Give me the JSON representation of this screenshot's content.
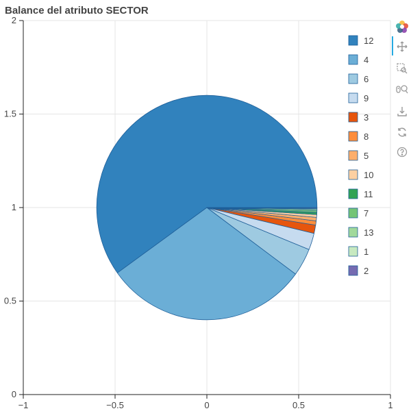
{
  "chart_data": {
    "type": "pie",
    "title": "Balance del atributo SECTOR",
    "xlim": [
      -1,
      1
    ],
    "ylim": [
      0,
      2
    ],
    "x_ticks": [
      "−1",
      "−0.5",
      "0",
      "0.5",
      "1"
    ],
    "y_ticks": [
      "0",
      "0.5",
      "1",
      "1.5",
      "2"
    ],
    "grid": true,
    "legend_position": "top-right",
    "slices": [
      {
        "label": "12",
        "value": 0.599,
        "color": "#3182bd"
      },
      {
        "label": "4",
        "value": 0.3,
        "color": "#6baed6"
      },
      {
        "label": "6",
        "value": 0.04,
        "color": "#9ecae1"
      },
      {
        "label": "9",
        "value": 0.024,
        "color": "#c6dbef"
      },
      {
        "label": "3",
        "value": 0.012,
        "color": "#e6550d"
      },
      {
        "label": "8",
        "value": 0.006,
        "color": "#fd8d3c"
      },
      {
        "label": "5",
        "value": 0.005,
        "color": "#fdae6b"
      },
      {
        "label": "10",
        "value": 0.004,
        "color": "#fdd0a2"
      },
      {
        "label": "11",
        "value": 0.003,
        "color": "#31a354"
      },
      {
        "label": "7",
        "value": 0.003,
        "color": "#74c476"
      },
      {
        "label": "13",
        "value": 0.002,
        "color": "#a1d99b"
      },
      {
        "label": "1",
        "value": 0.001,
        "color": "#c7e9c0"
      },
      {
        "label": "2",
        "value": 0.001,
        "color": "#756bb1"
      }
    ]
  },
  "toolbar": {
    "tools": [
      {
        "name": "bokeh-logo-icon"
      },
      {
        "name": "pan-tool-icon"
      },
      {
        "name": "box-zoom-tool-icon"
      },
      {
        "name": "wheel-zoom-tool-icon"
      },
      {
        "name": "save-tool-icon"
      },
      {
        "name": "reset-tool-icon"
      },
      {
        "name": "help-tool-icon"
      }
    ]
  }
}
